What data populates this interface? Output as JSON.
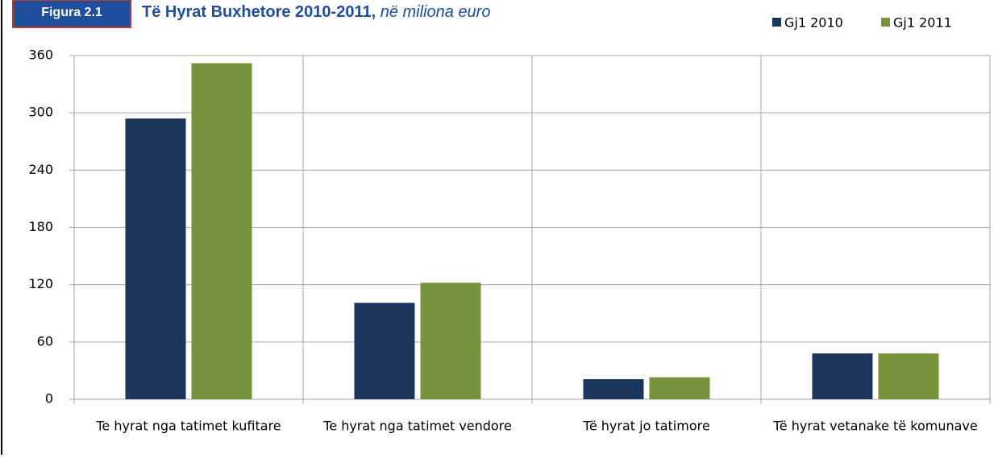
{
  "chart_data": {
    "type": "bar",
    "figure_label": "Figura 2.1",
    "title": "Të Hyrat Buxhetore 2010-2011,",
    "subtitle": "në miliona euro",
    "categories": [
      "Te hyrat nga tatimet kufitare",
      "Te hyrat nga tatimet vendore",
      "Të hyrat jo tatimore",
      "Të hyrat vetanake të komunave"
    ],
    "series": [
      {
        "name": "Gj1 2010",
        "color": "#1b365d",
        "values": [
          294,
          101,
          21,
          48
        ]
      },
      {
        "name": "Gj1 2011",
        "color": "#77933c",
        "values": [
          352,
          122,
          23,
          48
        ]
      }
    ],
    "ylim": [
      0,
      360
    ],
    "yticks": [
      0,
      60,
      120,
      180,
      240,
      300,
      360
    ],
    "grid": true,
    "legend": "top-right"
  }
}
